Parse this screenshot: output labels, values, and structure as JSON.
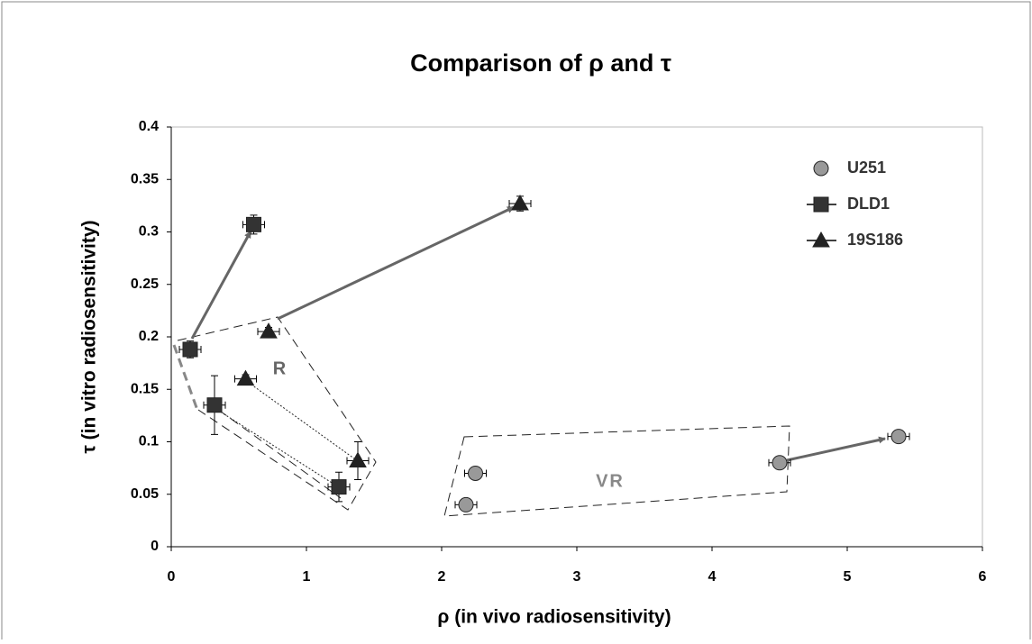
{
  "chart_data": {
    "type": "scatter",
    "title": "Comparison of ρ and τ",
    "x_label": "ρ (in vivo radiosensitivity)",
    "y_label": "τ (in vitro radiosensitivity)",
    "xlim": [
      0,
      6
    ],
    "xticks": [
      0,
      1,
      2,
      3,
      4,
      5,
      6
    ],
    "ylim": [
      0,
      0.4
    ],
    "yticks": [
      0,
      0.05,
      0.1,
      0.15,
      0.2,
      0.25,
      0.3,
      0.35,
      0.4
    ],
    "legend": "upper right",
    "annotations": [
      "R",
      "VR"
    ],
    "series": [
      {
        "name": "U251",
        "marker": "circle",
        "color": "#999999",
        "x": [
          2.18,
          2.25,
          4.5,
          5.38
        ],
        "y": [
          0.04,
          0.07,
          0.08,
          0.105
        ],
        "x_err": [
          0.08,
          0.08,
          0.08,
          0.08
        ],
        "y_err": [
          0.004,
          0.006,
          0.004,
          0.005
        ]
      },
      {
        "name": "DLD1",
        "marker": "square",
        "color": "#333333",
        "x": [
          0.14,
          0.32,
          0.61,
          1.24
        ],
        "y": [
          0.188,
          0.135,
          0.307,
          0.057
        ],
        "x_err": [
          0.08,
          0.08,
          0.08,
          0.08
        ],
        "y_err": [
          0.008,
          0.028,
          0.009,
          0.014
        ]
      },
      {
        "name": "19S186",
        "marker": "triangle",
        "color": "#222222",
        "x": [
          0.55,
          0.72,
          1.38,
          2.58
        ],
        "y": [
          0.16,
          0.205,
          0.082,
          0.327
        ],
        "x_err": [
          0.08,
          0.08,
          0.08,
          0.08
        ],
        "y_err": [
          0.004,
          0.004,
          0.018,
          0.007
        ]
      }
    ]
  }
}
